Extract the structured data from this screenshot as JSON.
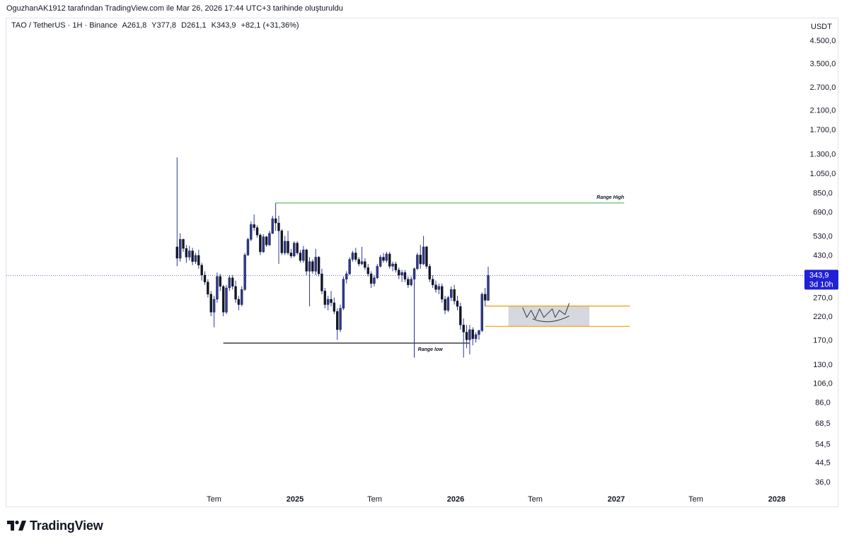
{
  "header": {
    "attribution": "OguzhanAK1912 tarafından TradingView.com ile Mar 26, 2026 17:44 UTC+3 tarihinde oluşturuldu"
  },
  "legend": {
    "symbol": "TAO / TetherUS · 1H · Binance",
    "open": "A261,8",
    "high": "Y377,8",
    "low": "D261,1",
    "close": "K343,9",
    "change": "+82,1 (+31,36%)"
  },
  "price_label": {
    "value": "343,9",
    "countdown": "3d 10h"
  },
  "footer": {
    "brand": "TradingView"
  },
  "colors": {
    "candle": "#303896",
    "price_badge": "#2121d6",
    "range_high_line": "#66bb6a",
    "range_low_line": "#131722",
    "zone_line": "#ff9800",
    "zone_fill": "#d1d4dc"
  },
  "chart_data": {
    "type": "candlestick",
    "currency": "USDT",
    "scale": "log",
    "y_ticks": [
      "4.500,0",
      "3.500,0",
      "2.700,0",
      "2.100,0",
      "1.700,0",
      "1.300,0",
      "1.050,0",
      "850,0",
      "690,0",
      "530,0",
      "430,0",
      "270,0",
      "220,0",
      "170,0",
      "130,0",
      "106,0",
      "86,0",
      "68,5",
      "54,5",
      "44,5",
      "36,0"
    ],
    "y_tick_values": [
      4500,
      3500,
      2700,
      2100,
      1700,
      1300,
      1050,
      850,
      690,
      530,
      430,
      270,
      220,
      170,
      130,
      106,
      86,
      68.5,
      54.5,
      44.5,
      36
    ],
    "x_ticks": [
      {
        "label": "Tem",
        "date": "2024-07-01",
        "bold": false
      },
      {
        "label": "2025",
        "date": "2025-01-01",
        "bold": true
      },
      {
        "label": "Tem",
        "date": "2025-07-01",
        "bold": false
      },
      {
        "label": "2026",
        "date": "2026-01-01",
        "bold": true
      },
      {
        "label": "Tem",
        "date": "2026-07-01",
        "bold": false
      },
      {
        "label": "2027",
        "date": "2027-01-01",
        "bold": true
      },
      {
        "label": "Tem",
        "date": "2027-07-01",
        "bold": false
      },
      {
        "label": "2028",
        "date": "2028-01-01",
        "bold": true
      }
    ],
    "candles": [
      {
        "t": "2024-04-08",
        "o": 470,
        "h": 1250,
        "l": 380,
        "c": 415
      },
      {
        "t": "2024-04-15",
        "o": 415,
        "h": 545,
        "l": 400,
        "c": 510
      },
      {
        "t": "2024-04-22",
        "o": 510,
        "h": 515,
        "l": 445,
        "c": 462
      },
      {
        "t": "2024-04-29",
        "o": 462,
        "h": 480,
        "l": 395,
        "c": 420
      },
      {
        "t": "2024-05-06",
        "o": 420,
        "h": 475,
        "l": 405,
        "c": 450
      },
      {
        "t": "2024-05-13",
        "o": 450,
        "h": 465,
        "l": 385,
        "c": 400
      },
      {
        "t": "2024-05-20",
        "o": 400,
        "h": 440,
        "l": 390,
        "c": 428
      },
      {
        "t": "2024-05-27",
        "o": 428,
        "h": 455,
        "l": 370,
        "c": 385
      },
      {
        "t": "2024-06-03",
        "o": 385,
        "h": 395,
        "l": 325,
        "c": 345
      },
      {
        "t": "2024-06-10",
        "o": 345,
        "h": 360,
        "l": 310,
        "c": 320
      },
      {
        "t": "2024-06-17",
        "o": 320,
        "h": 330,
        "l": 270,
        "c": 280
      },
      {
        "t": "2024-06-24",
        "o": 280,
        "h": 290,
        "l": 220,
        "c": 230
      },
      {
        "t": "2024-07-01",
        "o": 230,
        "h": 275,
        "l": 195,
        "c": 265
      },
      {
        "t": "2024-07-08",
        "o": 265,
        "h": 355,
        "l": 255,
        "c": 340
      },
      {
        "t": "2024-07-15",
        "o": 340,
        "h": 350,
        "l": 290,
        "c": 305
      },
      {
        "t": "2024-07-22",
        "o": 305,
        "h": 310,
        "l": 220,
        "c": 230
      },
      {
        "t": "2024-07-29",
        "o": 230,
        "h": 310,
        "l": 225,
        "c": 300
      },
      {
        "t": "2024-08-05",
        "o": 300,
        "h": 345,
        "l": 290,
        "c": 335
      },
      {
        "t": "2024-08-12",
        "o": 335,
        "h": 345,
        "l": 295,
        "c": 305
      },
      {
        "t": "2024-08-19",
        "o": 305,
        "h": 325,
        "l": 255,
        "c": 265
      },
      {
        "t": "2024-08-26",
        "o": 265,
        "h": 275,
        "l": 235,
        "c": 250
      },
      {
        "t": "2024-09-02",
        "o": 250,
        "h": 305,
        "l": 245,
        "c": 295
      },
      {
        "t": "2024-09-09",
        "o": 295,
        "h": 440,
        "l": 290,
        "c": 430
      },
      {
        "t": "2024-09-16",
        "o": 430,
        "h": 520,
        "l": 425,
        "c": 510
      },
      {
        "t": "2024-09-23",
        "o": 510,
        "h": 620,
        "l": 500,
        "c": 600
      },
      {
        "t": "2024-09-30",
        "o": 600,
        "h": 670,
        "l": 560,
        "c": 580
      },
      {
        "t": "2024-10-07",
        "o": 580,
        "h": 595,
        "l": 520,
        "c": 535
      },
      {
        "t": "2024-10-14",
        "o": 535,
        "h": 545,
        "l": 430,
        "c": 445
      },
      {
        "t": "2024-10-21",
        "o": 445,
        "h": 540,
        "l": 440,
        "c": 525
      },
      {
        "t": "2024-10-28",
        "o": 525,
        "h": 530,
        "l": 470,
        "c": 480
      },
      {
        "t": "2024-11-04",
        "o": 480,
        "h": 560,
        "l": 475,
        "c": 545
      },
      {
        "t": "2024-11-11",
        "o": 545,
        "h": 660,
        "l": 540,
        "c": 640
      },
      {
        "t": "2024-11-18",
        "o": 640,
        "h": 760,
        "l": 560,
        "c": 610
      },
      {
        "t": "2024-11-25",
        "o": 610,
        "h": 660,
        "l": 390,
        "c": 560
      },
      {
        "t": "2024-12-02",
        "o": 560,
        "h": 570,
        "l": 430,
        "c": 440
      },
      {
        "t": "2024-12-09",
        "o": 440,
        "h": 530,
        "l": 430,
        "c": 500
      },
      {
        "t": "2024-12-16",
        "o": 500,
        "h": 560,
        "l": 430,
        "c": 440
      },
      {
        "t": "2024-12-23",
        "o": 440,
        "h": 460,
        "l": 415,
        "c": 425
      },
      {
        "t": "2024-12-30",
        "o": 425,
        "h": 500,
        "l": 420,
        "c": 490
      },
      {
        "t": "2025-01-06",
        "o": 490,
        "h": 500,
        "l": 430,
        "c": 440
      },
      {
        "t": "2025-01-13",
        "o": 440,
        "h": 455,
        "l": 395,
        "c": 405
      },
      {
        "t": "2025-01-20",
        "o": 405,
        "h": 475,
        "l": 395,
        "c": 455
      },
      {
        "t": "2025-01-27",
        "o": 455,
        "h": 460,
        "l": 345,
        "c": 360
      },
      {
        "t": "2025-02-03",
        "o": 360,
        "h": 420,
        "l": 245,
        "c": 400
      },
      {
        "t": "2025-02-10",
        "o": 400,
        "h": 410,
        "l": 350,
        "c": 360
      },
      {
        "t": "2025-02-17",
        "o": 360,
        "h": 460,
        "l": 345,
        "c": 420
      },
      {
        "t": "2025-02-24",
        "o": 420,
        "h": 425,
        "l": 340,
        "c": 350
      },
      {
        "t": "2025-03-03",
        "o": 350,
        "h": 370,
        "l": 280,
        "c": 290
      },
      {
        "t": "2025-03-10",
        "o": 290,
        "h": 300,
        "l": 240,
        "c": 250
      },
      {
        "t": "2025-03-17",
        "o": 250,
        "h": 275,
        "l": 235,
        "c": 265
      },
      {
        "t": "2025-03-24",
        "o": 265,
        "h": 290,
        "l": 245,
        "c": 255
      },
      {
        "t": "2025-03-31",
        "o": 255,
        "h": 270,
        "l": 225,
        "c": 232
      },
      {
        "t": "2025-04-07",
        "o": 232,
        "h": 240,
        "l": 170,
        "c": 190
      },
      {
        "t": "2025-04-14",
        "o": 190,
        "h": 250,
        "l": 185,
        "c": 240
      },
      {
        "t": "2025-04-21",
        "o": 240,
        "h": 340,
        "l": 235,
        "c": 330
      },
      {
        "t": "2025-04-28",
        "o": 330,
        "h": 360,
        "l": 315,
        "c": 350
      },
      {
        "t": "2025-05-05",
        "o": 350,
        "h": 420,
        "l": 345,
        "c": 410
      },
      {
        "t": "2025-05-12",
        "o": 410,
        "h": 450,
        "l": 400,
        "c": 440
      },
      {
        "t": "2025-05-19",
        "o": 440,
        "h": 465,
        "l": 400,
        "c": 410
      },
      {
        "t": "2025-05-26",
        "o": 410,
        "h": 420,
        "l": 380,
        "c": 390
      },
      {
        "t": "2025-06-02",
        "o": 390,
        "h": 470,
        "l": 385,
        "c": 400
      },
      {
        "t": "2025-06-09",
        "o": 400,
        "h": 415,
        "l": 365,
        "c": 375
      },
      {
        "t": "2025-06-16",
        "o": 375,
        "h": 390,
        "l": 340,
        "c": 350
      },
      {
        "t": "2025-06-23",
        "o": 350,
        "h": 360,
        "l": 300,
        "c": 315
      },
      {
        "t": "2025-06-30",
        "o": 315,
        "h": 345,
        "l": 305,
        "c": 335
      },
      {
        "t": "2025-07-07",
        "o": 335,
        "h": 390,
        "l": 330,
        "c": 380
      },
      {
        "t": "2025-07-14",
        "o": 380,
        "h": 430,
        "l": 375,
        "c": 420
      },
      {
        "t": "2025-07-21",
        "o": 420,
        "h": 440,
        "l": 395,
        "c": 405
      },
      {
        "t": "2025-07-28",
        "o": 405,
        "h": 445,
        "l": 395,
        "c": 435
      },
      {
        "t": "2025-08-04",
        "o": 435,
        "h": 445,
        "l": 370,
        "c": 380
      },
      {
        "t": "2025-08-11",
        "o": 380,
        "h": 400,
        "l": 360,
        "c": 390
      },
      {
        "t": "2025-08-18",
        "o": 390,
        "h": 400,
        "l": 355,
        "c": 365
      },
      {
        "t": "2025-08-25",
        "o": 365,
        "h": 375,
        "l": 330,
        "c": 345
      },
      {
        "t": "2025-09-01",
        "o": 345,
        "h": 365,
        "l": 320,
        "c": 355
      },
      {
        "t": "2025-09-08",
        "o": 355,
        "h": 365,
        "l": 320,
        "c": 330
      },
      {
        "t": "2025-09-15",
        "o": 330,
        "h": 340,
        "l": 300,
        "c": 310
      },
      {
        "t": "2025-09-22",
        "o": 310,
        "h": 340,
        "l": 305,
        "c": 330
      },
      {
        "t": "2025-09-29",
        "o": 330,
        "h": 375,
        "l": 140,
        "c": 370
      },
      {
        "t": "2025-10-06",
        "o": 370,
        "h": 440,
        "l": 365,
        "c": 430
      },
      {
        "t": "2025-10-13",
        "o": 430,
        "h": 480,
        "l": 370,
        "c": 390
      },
      {
        "t": "2025-10-20",
        "o": 390,
        "h": 530,
        "l": 385,
        "c": 470
      },
      {
        "t": "2025-10-27",
        "o": 470,
        "h": 475,
        "l": 370,
        "c": 380
      },
      {
        "t": "2025-11-03",
        "o": 380,
        "h": 390,
        "l": 320,
        "c": 330
      },
      {
        "t": "2025-11-10",
        "o": 330,
        "h": 345,
        "l": 300,
        "c": 310
      },
      {
        "t": "2025-11-17",
        "o": 310,
        "h": 325,
        "l": 285,
        "c": 295
      },
      {
        "t": "2025-11-24",
        "o": 295,
        "h": 315,
        "l": 280,
        "c": 305
      },
      {
        "t": "2025-12-01",
        "o": 305,
        "h": 315,
        "l": 255,
        "c": 265
      },
      {
        "t": "2025-12-08",
        "o": 265,
        "h": 275,
        "l": 225,
        "c": 235
      },
      {
        "t": "2025-12-15",
        "o": 235,
        "h": 275,
        "l": 230,
        "c": 270
      },
      {
        "t": "2025-12-22",
        "o": 270,
        "h": 305,
        "l": 260,
        "c": 295
      },
      {
        "t": "2025-12-29",
        "o": 295,
        "h": 310,
        "l": 250,
        "c": 260
      },
      {
        "t": "2026-01-05",
        "o": 260,
        "h": 275,
        "l": 235,
        "c": 245
      },
      {
        "t": "2026-01-12",
        "o": 245,
        "h": 255,
        "l": 190,
        "c": 200
      },
      {
        "t": "2026-01-19",
        "o": 200,
        "h": 215,
        "l": 140,
        "c": 185
      },
      {
        "t": "2026-01-26",
        "o": 185,
        "h": 200,
        "l": 155,
        "c": 170
      },
      {
        "t": "2026-02-02",
        "o": 170,
        "h": 200,
        "l": 145,
        "c": 190
      },
      {
        "t": "2026-02-09",
        "o": 190,
        "h": 195,
        "l": 160,
        "c": 172
      },
      {
        "t": "2026-02-16",
        "o": 172,
        "h": 185,
        "l": 165,
        "c": 180
      },
      {
        "t": "2026-02-23",
        "o": 180,
        "h": 190,
        "l": 170,
        "c": 188
      },
      {
        "t": "2026-03-02",
        "o": 188,
        "h": 285,
        "l": 185,
        "c": 280
      },
      {
        "t": "2026-03-09",
        "o": 280,
        "h": 300,
        "l": 245,
        "c": 262
      },
      {
        "t": "2026-03-16",
        "o": 261.8,
        "h": 377.8,
        "l": 261.1,
        "c": 343.9
      }
    ],
    "current_price": 343.9,
    "annotations": [
      {
        "kind": "hline",
        "label": "Range High",
        "price": 760,
        "from": "2024-11-18",
        "to": "2027-01-19",
        "color": "#66bb6a"
      },
      {
        "kind": "hline",
        "label": "Range low",
        "price": 164,
        "from": "2024-07-22",
        "to": "2026-02-02",
        "color": "#131722"
      },
      {
        "kind": "vline",
        "price_from": 140,
        "price_to": 320,
        "date": "2025-09-29",
        "color": "#131722"
      },
      {
        "kind": "hline",
        "label": "",
        "price": 246,
        "from": "2026-03-09",
        "to": "2027-02-01",
        "color": "#ff9800"
      },
      {
        "kind": "hline",
        "label": "",
        "price": 197,
        "from": "2026-03-09",
        "to": "2027-02-01",
        "color": "#ff9800"
      },
      {
        "kind": "rect",
        "label": "",
        "price_top": 246,
        "price_bottom": 197,
        "from": "2026-05-01",
        "to": "2026-11-01",
        "color": "#d1d4dc"
      }
    ]
  }
}
